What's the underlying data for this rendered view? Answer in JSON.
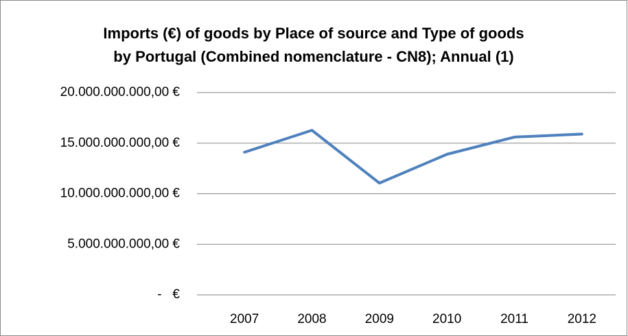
{
  "chart_data": {
    "type": "line",
    "title": [
      "Imports (€) of goods by Place of source and Type of goods",
      "by Portugal (Combined nomenclature - CN8); Annual (1)"
    ],
    "categories": [
      "2007",
      "2008",
      "2009",
      "2010",
      "2011",
      "2012"
    ],
    "series": [
      {
        "name": "Imports",
        "color": "#4f81bd",
        "values": [
          14100000000,
          16270000000,
          11050000000,
          13900000000,
          15600000000,
          15900000000
        ]
      }
    ],
    "ylim": [
      0,
      20000000000
    ],
    "yticks": [
      {
        "value": 0,
        "label": "-   €"
      },
      {
        "value": 5000000000,
        "label": "5.000.000.000,00 €"
      },
      {
        "value": 10000000000,
        "label": "10.000.000.000,00 €"
      },
      {
        "value": 15000000000,
        "label": "15.000.000.000,00 €"
      },
      {
        "value": 20000000000,
        "label": "20.000.000.000,00 €"
      }
    ],
    "grid": true
  }
}
